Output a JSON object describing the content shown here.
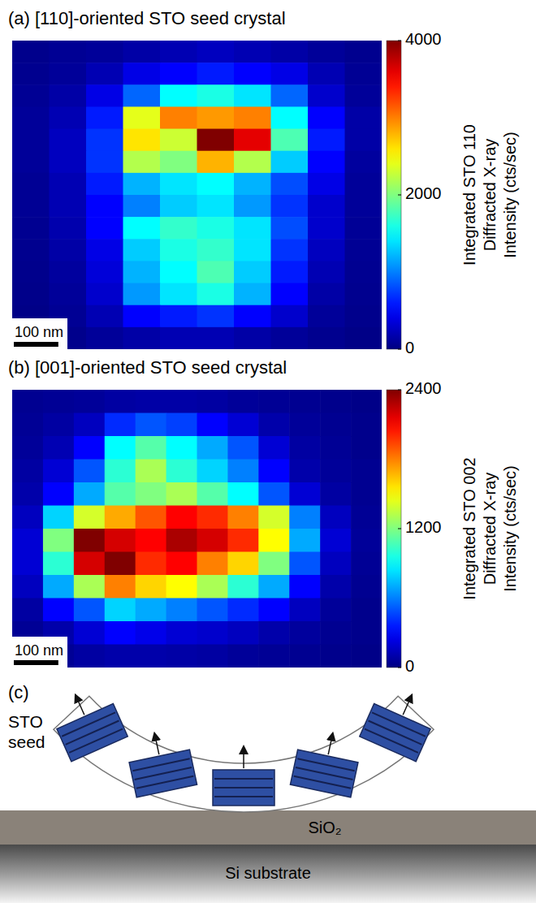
{
  "chart_data": [
    {
      "type": "heatmap",
      "label": "(a)",
      "title": "[110]-oriented STO seed crystal",
      "xlim": [
        0,
        830
      ],
      "ylim": [
        0,
        690
      ],
      "tick_labels": false,
      "cells": [
        [
          50,
          80,
          100,
          150,
          200,
          250,
          200,
          150,
          100,
          60
        ],
        [
          60,
          100,
          200,
          400,
          500,
          600,
          500,
          400,
          200,
          80
        ],
        [
          80,
          150,
          400,
          900,
          1500,
          1600,
          1400,
          900,
          300,
          100
        ],
        [
          100,
          200,
          600,
          2400,
          3000,
          2900,
          3000,
          1500,
          500,
          150
        ],
        [
          100,
          250,
          700,
          2600,
          2300,
          4000,
          3600,
          1800,
          600,
          150
        ],
        [
          100,
          250,
          700,
          2200,
          2000,
          2800,
          2200,
          1300,
          500,
          120
        ],
        [
          80,
          200,
          600,
          1200,
          1400,
          1500,
          1200,
          800,
          400,
          100
        ],
        [
          80,
          200,
          500,
          1000,
          1300,
          1400,
          1100,
          700,
          300,
          100
        ],
        [
          70,
          180,
          500,
          1500,
          1700,
          1600,
          1400,
          800,
          300,
          90
        ],
        [
          60,
          150,
          400,
          1300,
          1600,
          1700,
          1400,
          700,
          250,
          80
        ],
        [
          50,
          120,
          350,
          1200,
          1500,
          1800,
          1300,
          600,
          200,
          70
        ],
        [
          40,
          100,
          300,
          1100,
          1400,
          1600,
          1200,
          500,
          150,
          60
        ],
        [
          30,
          80,
          200,
          500,
          600,
          700,
          500,
          300,
          100,
          50
        ],
        [
          20,
          50,
          100,
          150,
          200,
          200,
          150,
          100,
          60,
          30
        ]
      ],
      "colorbar": {
        "range": [
          0,
          4000
        ],
        "ticks": [
          0,
          2000,
          4000
        ],
        "label": "Integrated STO 110 Diffracted X-ray Intensity (cts/sec)"
      },
      "scale_bar": {
        "value": 100,
        "label": "100 nm"
      }
    },
    {
      "type": "heatmap",
      "label": "(b)",
      "title": "[001]-oriented STO seed crystal",
      "xlim": [
        0,
        830
      ],
      "ylim": [
        0,
        620
      ],
      "tick_labels": false,
      "cells": [
        [
          40,
          50,
          60,
          80,
          90,
          90,
          80,
          60,
          50,
          40,
          30,
          20
        ],
        [
          50,
          80,
          150,
          400,
          500,
          450,
          300,
          200,
          100,
          60,
          40,
          30
        ],
        [
          60,
          120,
          300,
          900,
          1100,
          900,
          700,
          500,
          200,
          80,
          50,
          30
        ],
        [
          80,
          200,
          500,
          1000,
          1300,
          1000,
          800,
          600,
          300,
          100,
          60,
          40
        ],
        [
          100,
          300,
          700,
          1100,
          1200,
          1300,
          1100,
          900,
          500,
          200,
          80,
          40
        ],
        [
          150,
          800,
          1400,
          1700,
          1900,
          2100,
          2000,
          1800,
          1400,
          600,
          150,
          50
        ],
        [
          200,
          1200,
          2400,
          2200,
          2100,
          2300,
          2200,
          2000,
          1500,
          700,
          200,
          60
        ],
        [
          200,
          1000,
          2200,
          2400,
          2000,
          2100,
          1800,
          1600,
          1200,
          500,
          150,
          50
        ],
        [
          150,
          700,
          1300,
          1800,
          1600,
          1500,
          1300,
          1000,
          700,
          300,
          100,
          40
        ],
        [
          80,
          300,
          500,
          800,
          700,
          600,
          500,
          400,
          300,
          150,
          60,
          30
        ],
        [
          50,
          100,
          200,
          300,
          250,
          200,
          180,
          150,
          100,
          70,
          40,
          30
        ],
        [
          30,
          50,
          80,
          100,
          100,
          90,
          80,
          60,
          50,
          40,
          30,
          20
        ]
      ],
      "colorbar": {
        "range": [
          0,
          2400
        ],
        "ticks": [
          0,
          1200,
          2400
        ],
        "label": "Integrated STO 002 Diffracted X-ray Intensity (cts/sec)"
      },
      "scale_bar": {
        "value": 100,
        "label": "100 nm"
      }
    }
  ],
  "diagram": {
    "label": "(c)",
    "seed": "STO seed",
    "layers": [
      "SiO₂",
      "Si substrate"
    ]
  }
}
